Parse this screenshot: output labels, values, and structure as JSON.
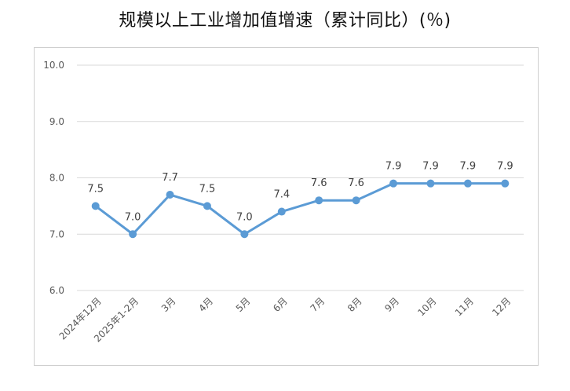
{
  "chart_data": {
    "type": "line",
    "title": "规模以上工业增加值增速（累计同比）(％)",
    "categories": [
      "2024年12月",
      "2025年1-2月",
      "3月",
      "4月",
      "5月",
      "6月",
      "7月",
      "8月",
      "9月",
      "10月",
      "11月",
      "12月"
    ],
    "values": [
      7.5,
      7.0,
      7.7,
      7.5,
      7.0,
      7.4,
      7.6,
      7.6,
      7.9,
      7.9,
      7.9,
      7.9
    ],
    "data_labels": [
      "7.5",
      "7.0",
      "7.7",
      "7.5",
      "7.0",
      "7.4",
      "7.6",
      "7.6",
      "7.9",
      "7.9",
      "7.9",
      "7.9"
    ],
    "ylim": [
      6.0,
      10.0
    ],
    "yticks": [
      "6.0",
      "7.0",
      "8.0",
      "9.0",
      "10.0"
    ],
    "xlabel": "",
    "ylabel": "",
    "grid": true,
    "legend": "none",
    "line_color": "#5b9bd5"
  }
}
